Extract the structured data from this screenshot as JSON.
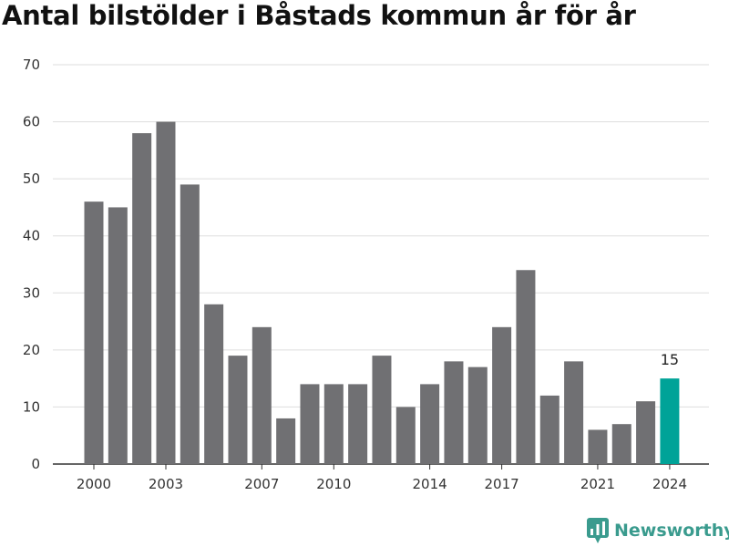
{
  "colors": {
    "bar": "#707073",
    "highlight": "#00a398",
    "grid": "#dddddd",
    "axis": "#333333",
    "brand": "#3a9b8e"
  },
  "brand": {
    "name": "Newsworthy",
    "icon": "bar-chart-logo-icon"
  },
  "chart_data": {
    "type": "bar",
    "title": "Antal bilstölder i Båstads kommun år för år",
    "xlabel": "",
    "ylabel": "",
    "categories": [
      "2000",
      "2001",
      "2002",
      "2003",
      "2004",
      "2005",
      "2006",
      "2007",
      "2008",
      "2009",
      "2010",
      "2011",
      "2012",
      "2013",
      "2014",
      "2015",
      "2016",
      "2017",
      "2018",
      "2019",
      "2020",
      "2021",
      "2022",
      "2023",
      "2024"
    ],
    "values": [
      46,
      45,
      58,
      60,
      49,
      28,
      19,
      24,
      8,
      14,
      14,
      14,
      19,
      10,
      14,
      18,
      17,
      24,
      34,
      12,
      18,
      6,
      7,
      11,
      15
    ],
    "x_tick_labels": [
      "2000",
      "2003",
      "2007",
      "2010",
      "2014",
      "2017",
      "2021",
      "2024"
    ],
    "y_ticks": [
      0,
      10,
      20,
      30,
      40,
      50,
      60,
      70
    ],
    "ylim": [
      0,
      70
    ],
    "grid": true,
    "legend": "none",
    "highlight_category": "2024",
    "data_labels": [
      {
        "category": "2024",
        "text": "15"
      }
    ]
  }
}
